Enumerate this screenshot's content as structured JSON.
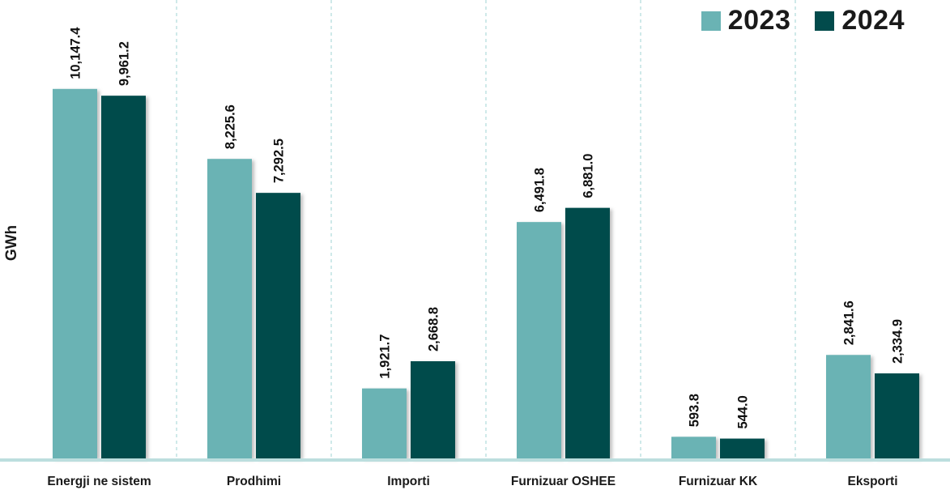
{
  "colors": {
    "series_2023": "#6ab3b4",
    "series_2024": "#024b4c",
    "axis": "#bcdede",
    "divider": "#9fd3d3"
  },
  "chart_data": {
    "type": "bar",
    "categories": [
      "Energji ne sistem",
      "Prodhimi",
      "Importi",
      "Furnizuar OSHEE",
      "Furnizuar KK",
      "Eksporti"
    ],
    "series": [
      {
        "name": "2023",
        "values": [
          10147.4,
          8225.6,
          1921.7,
          6491.8,
          593.8,
          2841.6
        ],
        "labels": [
          "10,147.4",
          "8,225.6",
          "1,921.7",
          "6,491.8",
          "593.8",
          "2,841.6"
        ]
      },
      {
        "name": "2024",
        "values": [
          9961.2,
          7292.5,
          2668.8,
          6881.0,
          544.0,
          2334.9
        ],
        "labels": [
          "9,961.2",
          "7,292.5",
          "2,668.8",
          "6,881.0",
          "544.0",
          "2,334.9"
        ]
      }
    ],
    "xlabel": "",
    "ylabel": "GWh",
    "ylim": [
      0,
      11700
    ],
    "legend_position": "top-right",
    "grid": "vertical dashed separators between categories"
  }
}
